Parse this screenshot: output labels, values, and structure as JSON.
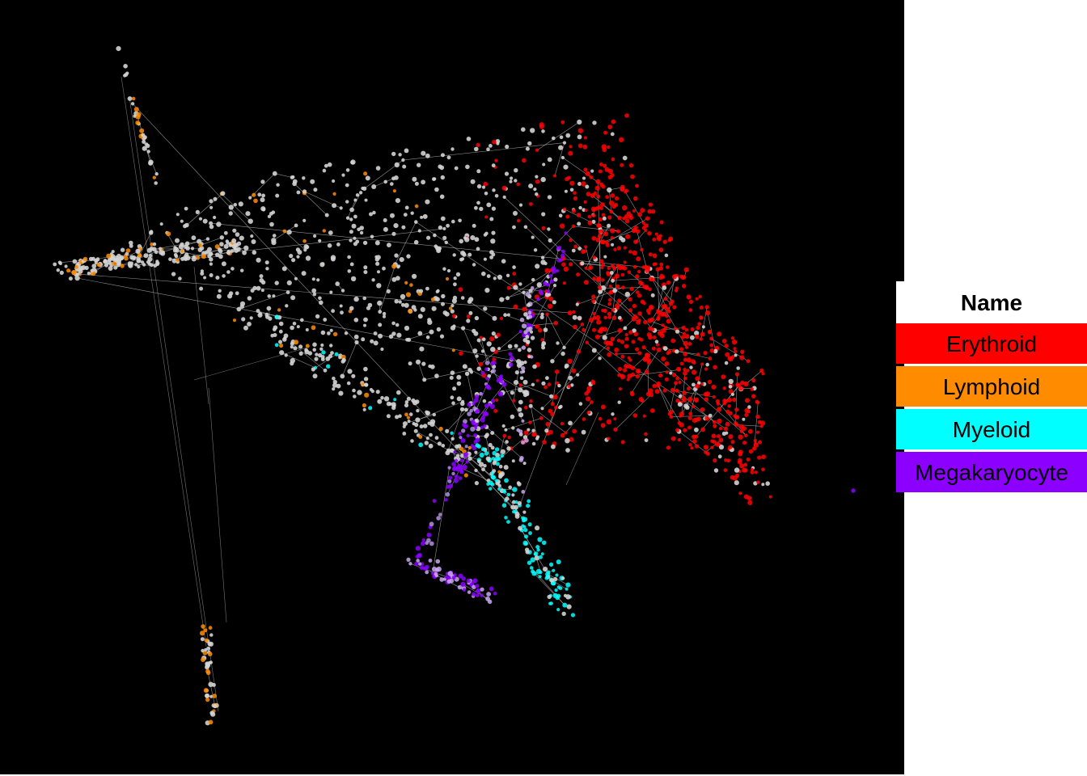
{
  "legend": {
    "title": "Name",
    "items": [
      {
        "label": "Erythroid",
        "color": "#ff0000"
      },
      {
        "label": "Lymphoid",
        "color": "#ff8c00"
      },
      {
        "label": "Myeloid",
        "color": "#00ffff"
      },
      {
        "label": "Megakaryocyte",
        "color": "#8b00ff"
      }
    ]
  },
  "colors": {
    "background": "#000000",
    "unassigned_node": "#d3d3d3",
    "edge": "#bfbfbf"
  }
}
